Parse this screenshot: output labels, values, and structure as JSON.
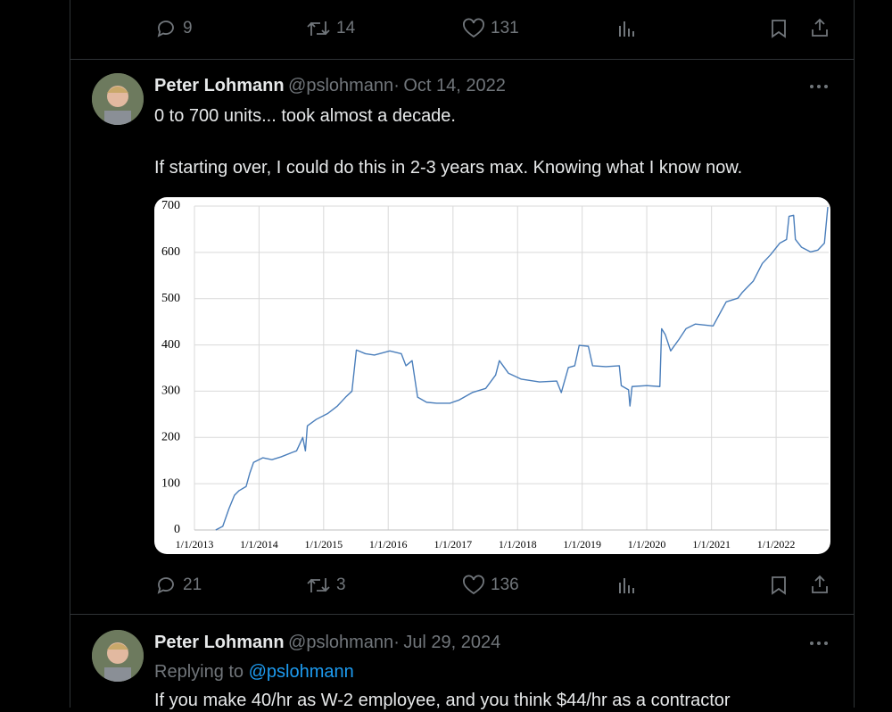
{
  "tweets": [
    {
      "actions": {
        "replies": 9,
        "reposts": 14,
        "likes": 131
      }
    },
    {
      "name": "Peter Lohmann",
      "handle": "@pslohmann",
      "separator": "·",
      "date": "Oct 14, 2022",
      "text": [
        "0 to 700 units... took almost a decade.",
        "If starting over, I could do this in 2-3 years max. Knowing what I know now."
      ],
      "actions": {
        "replies": 21,
        "reposts": 3,
        "likes": 136
      }
    },
    {
      "name": "Peter Lohmann",
      "handle": "@pslohmann",
      "separator": "·",
      "date": "Jul 29, 2024",
      "reply_to_label": "Replying to",
      "reply_to": "@pslohmann",
      "text": [
        "If you make 40/hr as W-2 employee, and you think $44/hr as a contractor"
      ]
    }
  ],
  "chart_data": {
    "type": "line",
    "color": "#4a7ebb",
    "grid": true,
    "x": [
      "2013-05-01",
      "2013-06-10",
      "2013-07-15",
      "2013-08-15",
      "2013-09-10",
      "2013-10-20",
      "2013-11-10",
      "2013-12-01",
      "2014-01-22",
      "2014-03-15",
      "2014-05-05",
      "2014-07-10",
      "2014-08-01",
      "2014-09-05",
      "2014-09-20",
      "2014-10-01",
      "2014-11-20",
      "2015-01-25",
      "2015-03-20",
      "2015-05-05",
      "2015-06-10",
      "2015-07-05",
      "2015-08-25",
      "2015-10-15",
      "2016-01-10",
      "2016-03-15",
      "2016-04-10",
      "2016-05-15",
      "2016-06-15",
      "2016-08-05",
      "2016-10-01",
      "2016-12-15",
      "2017-02-05",
      "2017-04-20",
      "2017-07-05",
      "2017-08-30",
      "2017-09-20",
      "2017-11-10",
      "2018-01-22",
      "2018-05-05",
      "2018-08-10",
      "2018-09-05",
      "2018-10-15",
      "2018-11-20",
      "2018-12-15",
      "2019-02-05",
      "2019-03-01",
      "2019-05-15",
      "2019-07-30",
      "2019-08-10",
      "2019-09-20",
      "2019-09-28",
      "2019-10-10",
      "2020-01-01",
      "2020-03-15",
      "2020-03-25",
      "2020-04-15",
      "2020-05-15",
      "2020-07-01",
      "2020-08-10",
      "2020-10-01",
      "2021-01-10",
      "2021-02-20",
      "2021-03-25",
      "2021-05-30",
      "2021-06-25",
      "2021-08-25",
      "2021-10-15",
      "2021-12-01",
      "2022-01-22",
      "2022-03-01",
      "2022-03-15",
      "2022-04-10",
      "2022-04-20",
      "2022-05-25",
      "2022-07-15",
      "2022-08-25",
      "2022-10-01",
      "2022-10-20"
    ],
    "values": [
      0,
      8,
      46,
      75,
      85,
      94,
      123,
      146,
      156,
      152,
      158,
      168,
      171,
      200,
      171,
      225,
      239,
      252,
      268,
      287,
      300,
      389,
      381,
      378,
      387,
      381,
      355,
      366,
      287,
      276,
      274,
      274,
      281,
      297,
      306,
      335,
      366,
      339,
      326,
      320,
      322,
      297,
      351,
      355,
      399,
      397,
      355,
      353,
      355,
      312,
      303,
      268,
      310,
      312,
      310,
      435,
      422,
      387,
      412,
      435,
      445,
      441,
      470,
      493,
      501,
      514,
      538,
      576,
      595,
      620,
      628,
      678,
      680,
      628,
      611,
      601,
      605,
      620,
      698
    ],
    "xlim": [
      "2013-01-01",
      "2022-10-25"
    ],
    "xticks": [
      {
        "value": "2013-01-01",
        "label": "1/1/2013"
      },
      {
        "value": "2014-01-01",
        "label": "1/1/2014"
      },
      {
        "value": "2015-01-01",
        "label": "1/1/2015"
      },
      {
        "value": "2016-01-01",
        "label": "1/1/2016"
      },
      {
        "value": "2017-01-01",
        "label": "1/1/2017"
      },
      {
        "value": "2018-01-01",
        "label": "1/1/2018"
      },
      {
        "value": "2019-01-01",
        "label": "1/1/2019"
      },
      {
        "value": "2020-01-01",
        "label": "1/1/2020"
      },
      {
        "value": "2021-01-01",
        "label": "1/1/2021"
      },
      {
        "value": "2022-01-01",
        "label": "1/1/2022"
      }
    ],
    "ylim": [
      0,
      700
    ],
    "yticks": [
      0,
      100,
      200,
      300,
      400,
      500,
      600,
      700
    ]
  }
}
